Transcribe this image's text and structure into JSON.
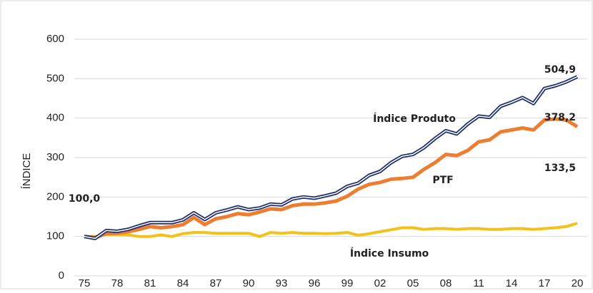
{
  "chart_data": {
    "type": "line",
    "y_label": "ÍNDICE",
    "categories": [
      "75",
      null,
      null,
      "78",
      null,
      null,
      "81",
      null,
      null,
      "84",
      null,
      null,
      "87",
      null,
      null,
      "90",
      null,
      null,
      "93",
      null,
      null,
      "96",
      null,
      null,
      "99",
      null,
      null,
      "02",
      null,
      null,
      "05",
      null,
      null,
      "08",
      null,
      null,
      "11",
      null,
      null,
      "14",
      null,
      null,
      "17",
      null,
      null,
      "20"
    ],
    "series": [
      {
        "name": "Índice Produto",
        "color": "#1f2f6b",
        "values": [
          100,
          95,
          115,
          113,
          118,
          127,
          135,
          135,
          135,
          142,
          160,
          143,
          160,
          167,
          175,
          168,
          172,
          182,
          180,
          195,
          200,
          197,
          203,
          210,
          227,
          235,
          255,
          265,
          287,
          303,
          308,
          325,
          348,
          368,
          360,
          385,
          405,
          402,
          430,
          440,
          452,
          437,
          475,
          482,
          492,
          504.9
        ],
        "value_labels": [
          "100,0",
          null,
          null,
          null,
          null,
          null,
          null,
          null,
          null,
          null,
          null,
          null,
          null,
          null,
          null,
          null,
          null,
          null,
          null,
          null,
          null,
          null,
          null,
          null,
          null,
          null,
          null,
          null,
          null,
          null,
          null,
          null,
          null,
          null,
          null,
          null,
          null,
          null,
          null,
          null,
          null,
          null,
          null,
          null,
          null,
          "504,9"
        ]
      },
      {
        "name": "PTF",
        "color": "#ed7d31",
        "values": [
          100,
          97,
          107,
          108,
          112,
          118,
          125,
          122,
          125,
          130,
          148,
          130,
          145,
          150,
          158,
          155,
          162,
          170,
          168,
          178,
          182,
          182,
          185,
          190,
          202,
          220,
          232,
          237,
          245,
          247,
          250,
          270,
          287,
          308,
          305,
          318,
          340,
          345,
          365,
          370,
          375,
          370,
          395,
          398,
          395,
          378.2
        ],
        "value_labels": [
          null,
          null,
          null,
          null,
          null,
          null,
          null,
          null,
          null,
          null,
          null,
          null,
          null,
          null,
          null,
          null,
          null,
          null,
          null,
          null,
          null,
          null,
          null,
          null,
          null,
          null,
          null,
          null,
          null,
          null,
          null,
          null,
          null,
          null,
          null,
          null,
          null,
          null,
          null,
          null,
          null,
          null,
          null,
          null,
          null,
          "378,2"
        ]
      },
      {
        "name": "Índice Insumo",
        "color": "#f2c21b",
        "values": [
          100,
          100,
          105,
          105,
          104,
          100,
          100,
          104,
          100,
          107,
          110,
          110,
          108,
          108,
          108,
          108,
          100,
          110,
          108,
          110,
          108,
          108,
          107,
          108,
          110,
          103,
          107,
          112,
          117,
          122,
          122,
          118,
          120,
          120,
          118,
          120,
          120,
          118,
          118,
          120,
          120,
          118,
          120,
          122,
          125,
          133.5
        ],
        "value_labels": [
          null,
          null,
          null,
          null,
          null,
          null,
          null,
          null,
          null,
          null,
          null,
          null,
          null,
          null,
          null,
          null,
          null,
          null,
          null,
          null,
          null,
          null,
          null,
          null,
          null,
          null,
          null,
          null,
          null,
          null,
          null,
          null,
          null,
          null,
          null,
          null,
          null,
          null,
          null,
          null,
          null,
          null,
          null,
          null,
          null,
          "133,5"
        ]
      }
    ],
    "ylim": [
      0,
      600
    ],
    "yticks": [
      0,
      100,
      200,
      300,
      400,
      500,
      600
    ],
    "grid": true
  }
}
